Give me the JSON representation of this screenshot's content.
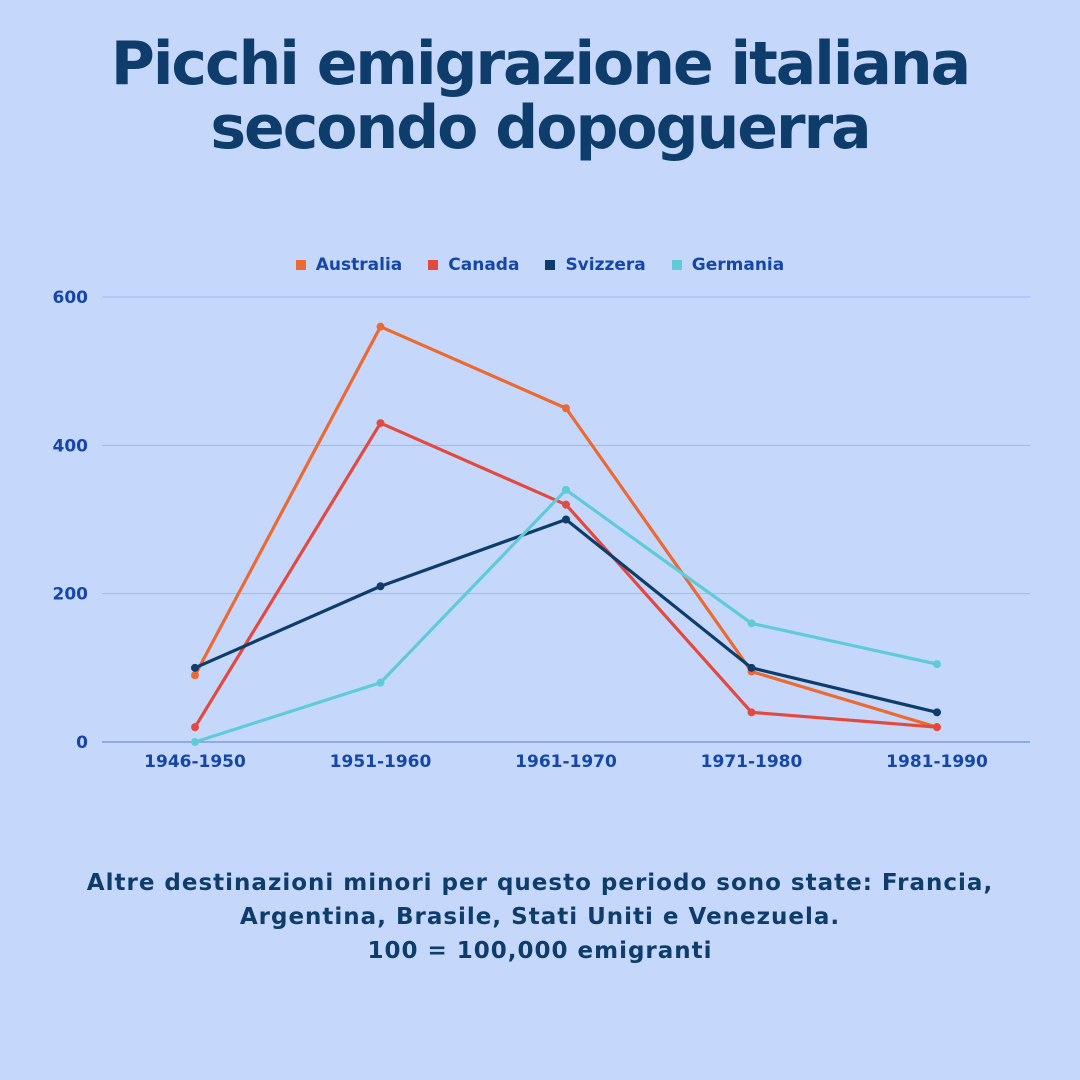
{
  "title": {
    "line1": "Picchi emigrazione italiana",
    "line2": "secondo dopoguerra"
  },
  "note": {
    "line1": "Altre destinazioni minori per questo periodo sono state: Francia,",
    "line2": "Argentina, Brasile, Stati Uniti e Venezuela.",
    "line3": "100 = 100,000 emigranti"
  },
  "chart_data": {
    "type": "line",
    "categories": [
      "1946-1950",
      "1951-1960",
      "1961-1970",
      "1971-1980",
      "1981-1990"
    ],
    "ylim": [
      0,
      600
    ],
    "yticks": [
      0,
      200,
      400,
      600
    ],
    "grid": true,
    "legend_position": "top-center",
    "series": [
      {
        "name": "Australia",
        "color": "#ea6a32",
        "values": [
          90,
          560,
          450,
          95,
          20
        ]
      },
      {
        "name": "Canada",
        "color": "#e24a40",
        "values": [
          20,
          430,
          320,
          40,
          20
        ]
      },
      {
        "name": "Svizzera",
        "color": "#0f3d6b",
        "values": [
          100,
          210,
          300,
          100,
          40
        ]
      },
      {
        "name": "Germania",
        "color": "#5fcbd8",
        "values": [
          0,
          80,
          340,
          160,
          105
        ]
      }
    ]
  }
}
